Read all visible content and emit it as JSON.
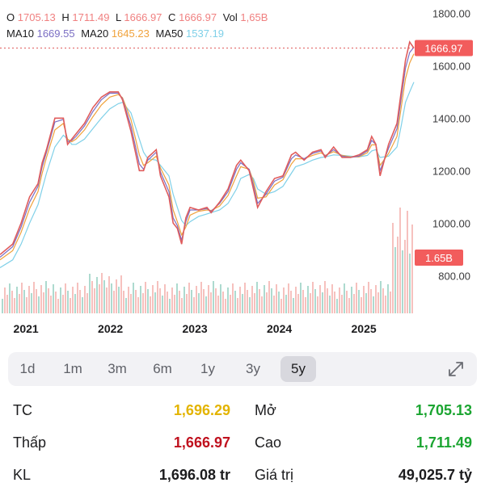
{
  "ohlc": {
    "o_label": "O",
    "o": "1705.13",
    "h_label": "H",
    "h": "1711.49",
    "l_label": "L",
    "l": "1666.97",
    "c_label": "C",
    "c": "1666.97",
    "vol_label": "Vol",
    "vol": "1,65B",
    "ma10_label": "MA10",
    "ma10": "1669.55",
    "ma20_label": "MA20",
    "ma20": "1645.23",
    "ma50_label": "MA50",
    "ma50": "1537.19"
  },
  "chart_data": {
    "type": "line",
    "x_ticks": [
      "2021",
      "2022",
      "2023",
      "2024",
      "2025"
    ],
    "y_ticks": [
      "1800.00",
      "1600.00",
      "1400.00",
      "1200.00",
      "1000.00",
      "800.00"
    ],
    "ylim": [
      650,
      1850
    ],
    "price_tag": "1666.97",
    "volume_tag": "1.65B",
    "x": [
      2020.75,
      2020.9,
      2021.0,
      2021.1,
      2021.2,
      2021.25,
      2021.3,
      2021.4,
      2021.5,
      2021.55,
      2021.6,
      2021.65,
      2021.75,
      2021.85,
      2021.95,
      2022.05,
      2022.15,
      2022.2,
      2022.3,
      2022.4,
      2022.45,
      2022.5,
      2022.6,
      2022.65,
      2022.75,
      2022.8,
      2022.85,
      2022.9,
      2022.95,
      2023.0,
      2023.1,
      2023.2,
      2023.25,
      2023.35,
      2023.45,
      2023.55,
      2023.6,
      2023.7,
      2023.75,
      2023.8,
      2023.9,
      2024.0,
      2024.1,
      2024.2,
      2024.25,
      2024.35,
      2024.45,
      2024.55,
      2024.6,
      2024.7,
      2024.8,
      2024.9,
      2025.0,
      2025.1,
      2025.15,
      2025.2,
      2025.25,
      2025.35,
      2025.45,
      2025.5,
      2025.55,
      2025.6,
      2025.65
    ],
    "series": [
      {
        "values": [
          880,
          920,
          1000,
          1100,
          1150,
          1230,
          1280,
          1400,
          1400,
          1300,
          1320,
          1340,
          1380,
          1440,
          1480,
          1500,
          1500,
          1470,
          1350,
          1200,
          1200,
          1250,
          1280,
          1180,
          1100,
          1000,
          980,
          920,
          1020,
          1060,
          1050,
          1060,
          1040,
          1080,
          1130,
          1220,
          1240,
          1200,
          1130,
          1060,
          1120,
          1170,
          1180,
          1260,
          1270,
          1240,
          1270,
          1280,
          1250,
          1290,
          1250,
          1250,
          1260,
          1280,
          1330,
          1300,
          1180,
          1300,
          1380,
          1500,
          1620,
          1690,
          1667
        ],
        "color": "#e05c5c"
      },
      {
        "values": [
          870,
          910,
          985,
          1080,
          1140,
          1215,
          1270,
          1385,
          1395,
          1310,
          1315,
          1330,
          1370,
          1425,
          1470,
          1495,
          1495,
          1475,
          1370,
          1225,
          1205,
          1240,
          1270,
          1195,
          1120,
          1020,
          990,
          935,
          1005,
          1050,
          1050,
          1055,
          1045,
          1075,
          1120,
          1205,
          1230,
          1205,
          1145,
          1075,
          1110,
          1160,
          1175,
          1245,
          1260,
          1245,
          1265,
          1275,
          1255,
          1280,
          1255,
          1250,
          1255,
          1275,
          1315,
          1300,
          1200,
          1285,
          1360,
          1475,
          1590,
          1650,
          1670
        ],
        "color": "#7b6fc4"
      },
      {
        "values": [
          860,
          895,
          965,
          1055,
          1120,
          1190,
          1250,
          1355,
          1380,
          1320,
          1310,
          1320,
          1355,
          1405,
          1450,
          1480,
          1490,
          1478,
          1395,
          1260,
          1220,
          1230,
          1255,
          1210,
          1145,
          1050,
          1005,
          955,
          985,
          1030,
          1045,
          1050,
          1048,
          1065,
          1105,
          1180,
          1215,
          1205,
          1160,
          1095,
          1100,
          1145,
          1165,
          1225,
          1245,
          1245,
          1258,
          1268,
          1258,
          1272,
          1258,
          1252,
          1252,
          1268,
          1298,
          1298,
          1220,
          1265,
          1330,
          1440,
          1550,
          1610,
          1645
        ],
        "color": "#f0a23c"
      },
      {
        "values": [
          830,
          860,
          920,
          1000,
          1070,
          1130,
          1190,
          1290,
          1335,
          1320,
          1300,
          1300,
          1320,
          1360,
          1400,
          1435,
          1455,
          1460,
          1420,
          1320,
          1270,
          1245,
          1240,
          1220,
          1180,
          1110,
          1060,
          1010,
          990,
          1005,
          1025,
          1035,
          1040,
          1050,
          1075,
          1130,
          1170,
          1185,
          1170,
          1130,
          1110,
          1120,
          1140,
          1190,
          1215,
          1225,
          1240,
          1250,
          1252,
          1260,
          1258,
          1255,
          1252,
          1258,
          1275,
          1280,
          1250,
          1255,
          1290,
          1370,
          1460,
          1500,
          1537
        ],
        "color": "#7fd0e8"
      }
    ]
  },
  "timeframes": [
    "1d",
    "1m",
    "3m",
    "6m",
    "1y",
    "3y",
    "5y"
  ],
  "active_timeframe": "5y",
  "stats": {
    "tc_label": "TC",
    "tc": "1,696.29",
    "open_label": "Mở",
    "open": "1,705.13",
    "low_label": "Thấp",
    "low": "1,666.97",
    "high_label": "Cao",
    "high": "1,711.49",
    "kl_label": "KL",
    "kl": "1,696.08 tr",
    "value_label": "Giá trị",
    "value": "49,025.7 tỷ"
  },
  "colors": {
    "yellow": "#e3b400",
    "red": "#c0121f",
    "green": "#1ba531"
  }
}
